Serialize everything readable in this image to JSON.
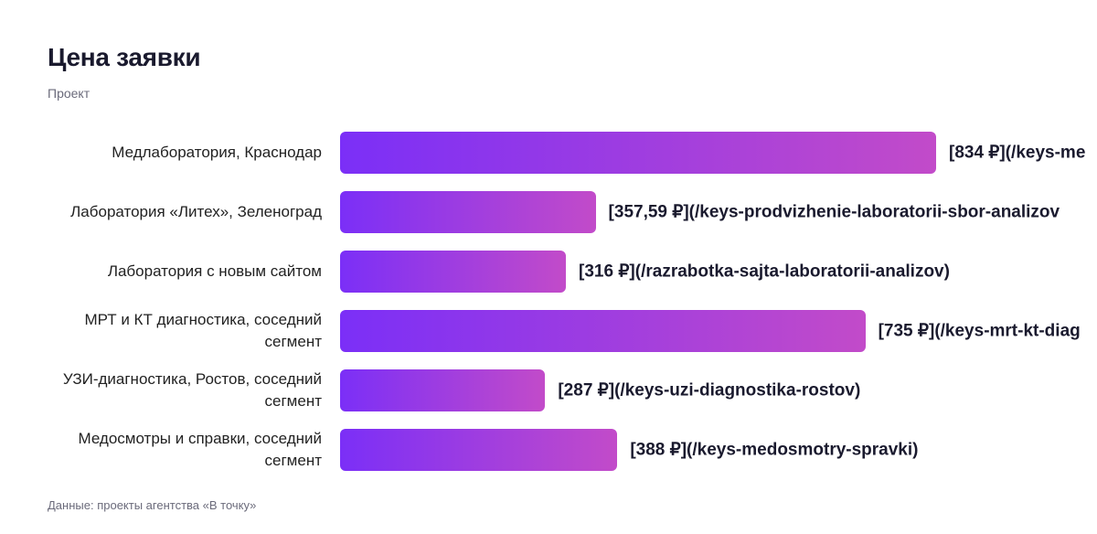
{
  "chart_data": {
    "type": "bar",
    "orientation": "horizontal",
    "title": "Цена заявки",
    "subtitle": "Проект",
    "categories": [
      "Медлаборатория, Краснодар",
      "Лаборатория «Литех», Зеленоград",
      "Лаборатория с новым сайтом",
      "МРТ и КТ диагностика, соседний сегмент",
      "УЗИ-диагностика, Ростов, соседний сегмент",
      "Медосмотры и справки, соседний сегмент"
    ],
    "values": [
      834,
      357.59,
      316,
      735,
      287,
      388
    ],
    "value_labels": [
      "[834 ₽](/keys-me",
      "[357,59 ₽](/keys-prodvizhenie-laboratorii-sbor-analizov",
      "[316 ₽](/razrabotka-sajta-laboratorii-analizov)",
      "[735 ₽](/keys-mrt-kt-diag",
      "[287 ₽](/keys-uzi-diagnostika-rostov)",
      "[388 ₽](/keys-medosmotry-spravki)"
    ],
    "colors": [
      "#7b2ff7",
      "#c24bc9"
    ],
    "source": "Данные: проекты агентства «В точку»"
  }
}
